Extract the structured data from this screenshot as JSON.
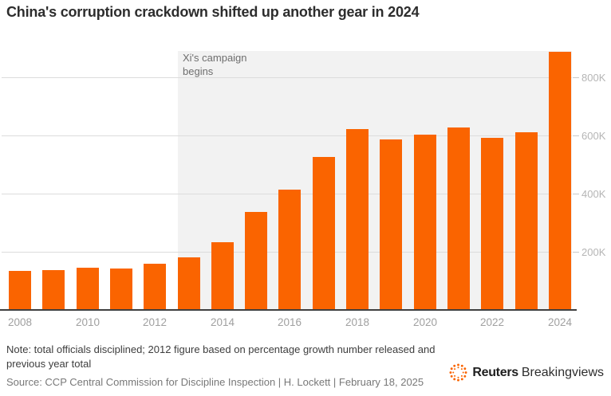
{
  "header": {
    "title": "China's corruption crackdown shifted up another gear in 2024"
  },
  "chart_data": {
    "type": "bar",
    "title": "China's corruption crackdown shifted up another gear in 2024",
    "categories": [
      "2008",
      "2009",
      "2010",
      "2011",
      "2012",
      "2013",
      "2014",
      "2015",
      "2016",
      "2017",
      "2018",
      "2019",
      "2020",
      "2021",
      "2022",
      "2023",
      "2024"
    ],
    "values": [
      133000,
      138000,
      146000,
      142000,
      160000,
      182000,
      232000,
      336000,
      415000,
      527000,
      621000,
      587000,
      604000,
      627000,
      592000,
      610000,
      889000
    ],
    "xlabel": "",
    "ylabel": "",
    "x_tick_labels": [
      "2008",
      "2010",
      "2012",
      "2014",
      "2016",
      "2018",
      "2020",
      "2022",
      "2024"
    ],
    "y_ticks": [
      200000,
      400000,
      600000,
      800000
    ],
    "y_tick_labels": [
      "200K",
      "400K",
      "600K",
      "800K"
    ],
    "ylim": [
      0,
      893000
    ],
    "grid": true,
    "bar_color": "#fa6400",
    "highlight_region": {
      "label": "Xi's campaign begins",
      "start_category": "2013",
      "color": "#f2f2f2"
    },
    "legend": null
  },
  "footer": {
    "note": "Note: total officials disciplined; 2012 figure based on percentage growth number released and previous year total",
    "source": "Source: CCP Central Commission for Discipline Inspection | H. Lockett | February 18, 2025",
    "brand": {
      "bold": "Reuters",
      "regular": "Breakingviews"
    }
  }
}
